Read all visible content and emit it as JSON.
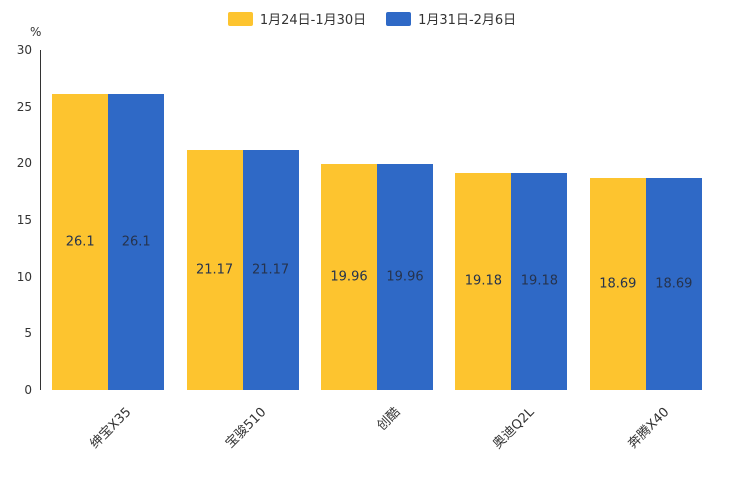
{
  "chart_data": {
    "type": "bar",
    "title": "",
    "categories": [
      "绅宝X35",
      "宝骏510",
      "创酷",
      "奥迪Q2L",
      "奔腾X40"
    ],
    "series": [
      {
        "name": "1月24日-1月30日",
        "color": "#FDC42F",
        "values": [
          26.1,
          21.17,
          19.96,
          19.18,
          18.69
        ]
      },
      {
        "name": "1月31日-2月6日",
        "color": "#2F69C6",
        "values": [
          26.1,
          21.17,
          19.96,
          19.18,
          18.69
        ]
      }
    ],
    "xlabel": "",
    "ylabel": "%",
    "ylim": [
      0,
      30
    ],
    "yticks": [
      0,
      5,
      10,
      15,
      20,
      25,
      30
    ],
    "legend_position": "top",
    "grid": false,
    "data_labels": "inside-middle",
    "background_color": "#ffffff",
    "axis_color": "#333333"
  }
}
